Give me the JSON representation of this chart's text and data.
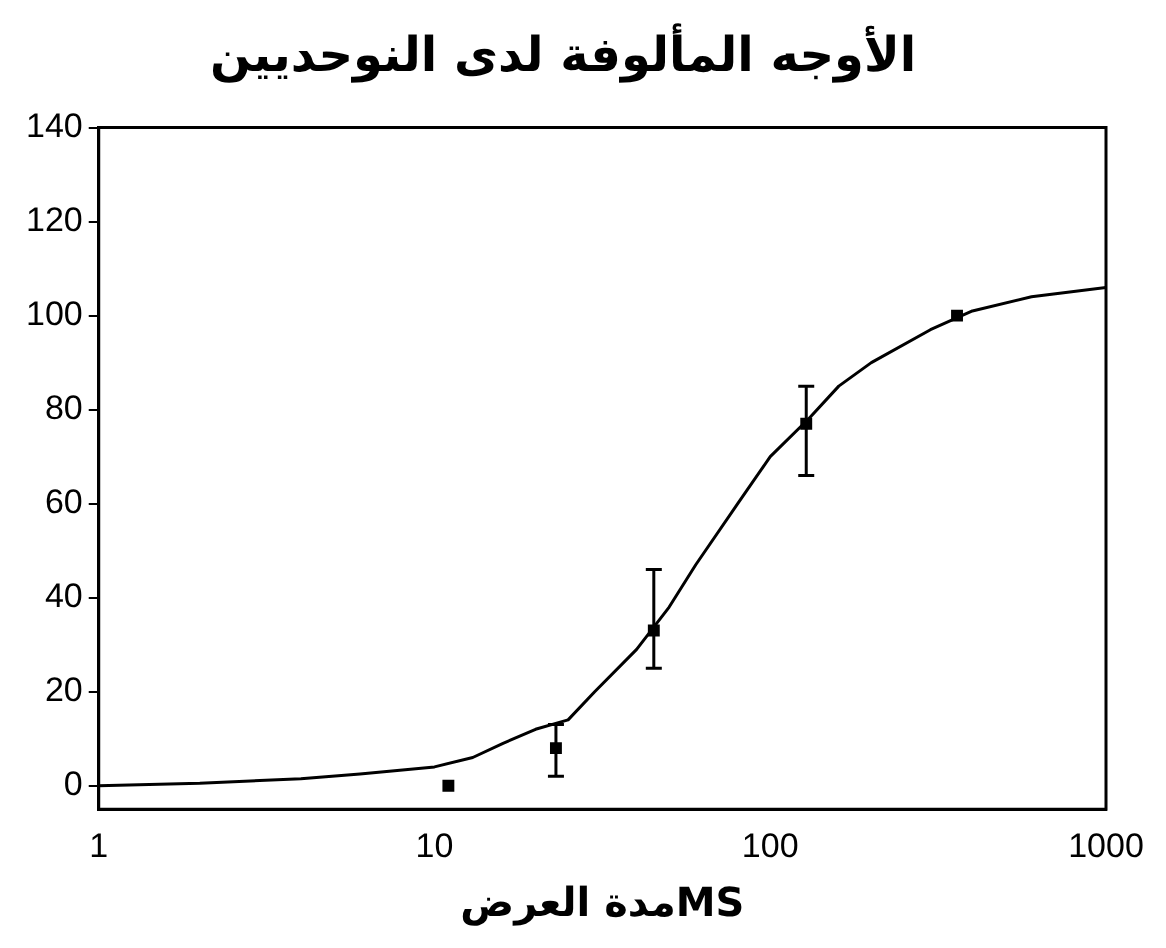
{
  "chart_data": {
    "type": "line",
    "title": "الأوجه المألوفة لدى النوحديين",
    "xlabel": "مدة العرضMS",
    "log": "x",
    "xlim": [
      1,
      1000
    ],
    "xticks": [
      1,
      10,
      100,
      1000
    ],
    "ylim": [
      -5,
      140
    ],
    "yticks": [
      0,
      20,
      40,
      60,
      80,
      100,
      120,
      140
    ],
    "grid": false,
    "legend": false,
    "series": [
      {
        "type": "line",
        "color": "#000000",
        "marker": "none",
        "x": [
          1,
          2,
          4,
          6,
          10,
          13,
          16,
          20,
          25,
          30,
          40,
          50,
          60,
          80,
          100,
          130,
          160,
          200,
          300,
          400,
          600,
          1000
        ],
        "values": [
          0,
          0.5,
          1.5,
          2.5,
          4,
          6,
          9,
          12,
          14,
          20,
          29,
          38,
          47,
          60,
          70,
          78,
          85,
          90,
          97,
          101,
          104,
          106
        ]
      },
      {
        "type": "scatter",
        "color": "#000000",
        "marker": "square",
        "x": [
          11,
          23,
          45,
          128,
          360
        ],
        "values": [
          0,
          8,
          33,
          77,
          100
        ],
        "errors": [
          null,
          [
            2,
            13
          ],
          [
            25,
            46
          ],
          [
            66,
            85
          ],
          null
        ]
      }
    ]
  }
}
